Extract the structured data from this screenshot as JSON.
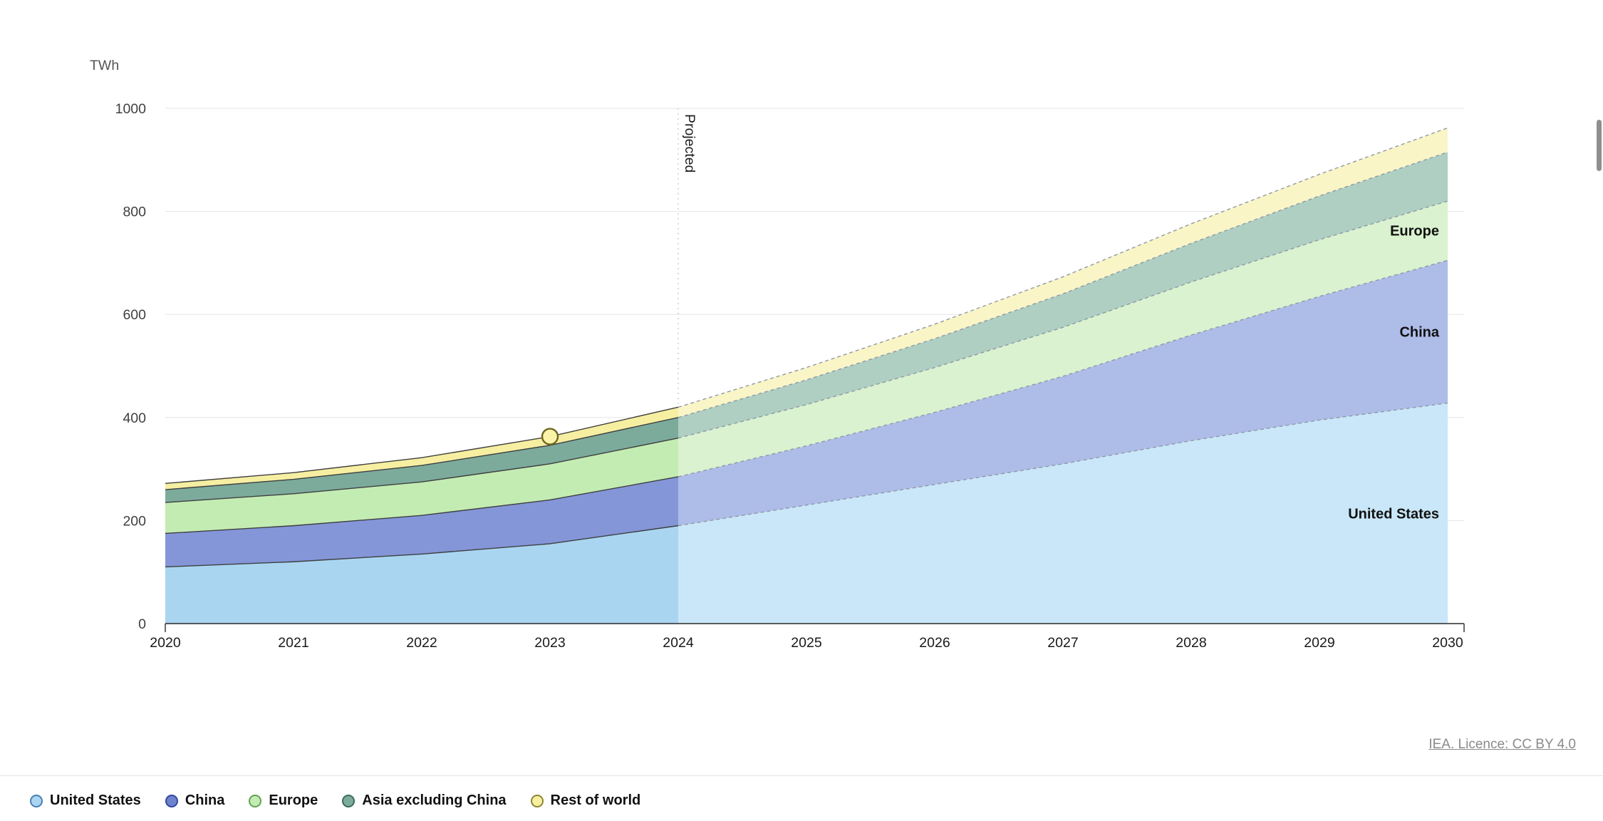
{
  "header": {
    "unit_label": "TWh"
  },
  "footer": {
    "licence_link": "IEA. Licence: CC BY 4.0"
  },
  "chart_data": {
    "type": "area",
    "stacked": true,
    "title": "",
    "xlabel": "",
    "ylabel": "TWh",
    "x": [
      2020,
      2021,
      2022,
      2023,
      2024,
      2025,
      2026,
      2027,
      2028,
      2029,
      2030
    ],
    "ylim": [
      0,
      1000
    ],
    "yticks": [
      0,
      200,
      400,
      600,
      800,
      1000
    ],
    "grid": true,
    "legend_position": "bottom-left",
    "projection_start_x": 2024,
    "projected_label": "Projected",
    "marker": {
      "x": 2023,
      "y": 363,
      "fill": "#faf3a8",
      "stroke": "#6f651f"
    },
    "edge_color_historical": "#3f3f3f",
    "edge_color_projected": "#9099a8",
    "axis_color": "#2b2b2b",
    "grid_color": "#e6e6e6",
    "series": [
      {
        "name": "United States",
        "values": [
          110,
          120,
          135,
          155,
          190,
          230,
          270,
          310,
          355,
          395,
          428
        ],
        "fill_historical": "#a9d5f1",
        "fill_projected": "#c9e7f8",
        "legend_fill": "#a9d5f1",
        "legend_stroke": "#4a7fb5",
        "inline_label": true
      },
      {
        "name": "China",
        "values": [
          65,
          70,
          75,
          85,
          95,
          115,
          140,
          170,
          205,
          240,
          277
        ],
        "fill_historical": "#8496d8",
        "fill_projected": "#aebce8",
        "legend_fill": "#6d83cd",
        "legend_stroke": "#33479f",
        "inline_label": true
      },
      {
        "name": "Europe",
        "values": [
          60,
          62,
          65,
          70,
          75,
          80,
          87,
          95,
          103,
          110,
          115
        ],
        "fill_historical": "#c3ecb3",
        "fill_projected": "#daf2cf",
        "legend_fill": "#c3ecb3",
        "legend_stroke": "#63a053",
        "inline_label": true
      },
      {
        "name": "Asia excluding China",
        "values": [
          25,
          28,
          32,
          36,
          40,
          48,
          56,
          65,
          75,
          85,
          95
        ],
        "fill_historical": "#7cab9c",
        "fill_projected": "#aecfc2",
        "legend_fill": "#7cab9c",
        "legend_stroke": "#3a6c5e",
        "inline_label": false
      },
      {
        "name": "Rest of world",
        "values": [
          12,
          13,
          15,
          17,
          20,
          24,
          28,
          33,
          38,
          42,
          47
        ],
        "fill_historical": "#f6efa2",
        "fill_projected": "#faf5c6",
        "legend_fill": "#f6efa2",
        "legend_stroke": "#8f852e",
        "inline_label": false
      }
    ]
  }
}
